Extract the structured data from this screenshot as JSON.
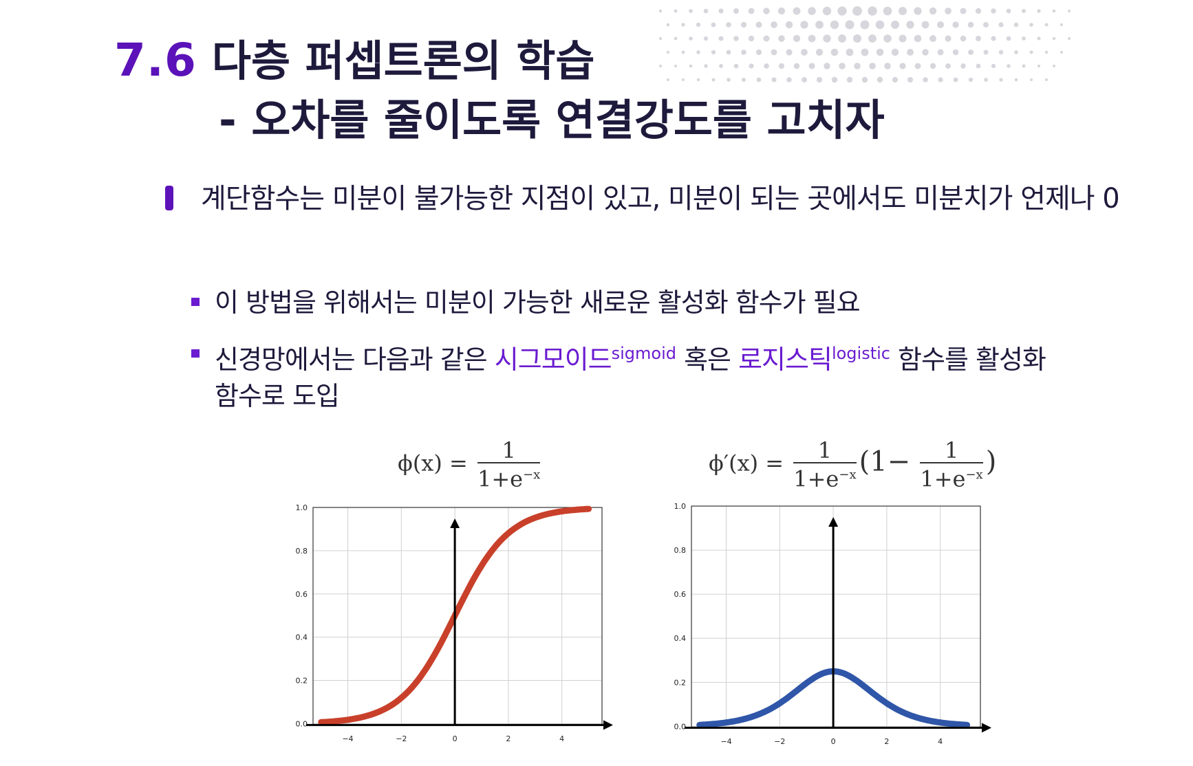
{
  "title": {
    "number": "7.6",
    "line1": "다층 퍼셉트론의 학습",
    "line2": "- 오차를 줄이도록 연결강도를 고치자"
  },
  "body": {
    "para1": "계단함수는 미분이 불가능한 지점이 있고, 미분이 되는 곳에서도 미분치가 언제나 0",
    "sub1": "이 방법을 위해서는 미분이 가능한 새로운 활성화 함수가 필요",
    "sub2": {
      "before": "신경망에서는 다음과 같은 ",
      "term1": "시그모이드",
      "term1_sup": "sigmoid",
      "middle": " 혹은 ",
      "term2": "로지스틱",
      "term2_sup": "logistic",
      "after_line1": " 함수를 활성화",
      "after_line2": "함수로 도입"
    }
  },
  "formulas": {
    "left_lhs": "ϕ(x) =",
    "left_num": "1",
    "left_den": "1+e",
    "left_exp": "−x",
    "right_lhs": "ϕ′(x) =",
    "right_num": "1",
    "right_den": "1+e",
    "right_exp": "−x",
    "right_paren_open": "(1−",
    "right_num2": "1",
    "right_den2": "1+e",
    "right_exp2": "−x",
    "right_paren_close": ")"
  },
  "chart_data": [
    {
      "type": "line",
      "function": "sigmoid",
      "x": [
        -5,
        -4,
        -3,
        -2,
        -1,
        0,
        1,
        2,
        3,
        4,
        5
      ],
      "y": [
        0.0067,
        0.018,
        0.047,
        0.119,
        0.269,
        0.5,
        0.731,
        0.881,
        0.953,
        0.982,
        0.9933
      ],
      "xticks": [
        "−4",
        "−2",
        "0",
        "2",
        "4"
      ],
      "yticks": [
        "0.0",
        "0.2",
        "0.4",
        "0.6",
        "0.8",
        "1.0"
      ],
      "xlim": [
        -5.3,
        5.5
      ],
      "ylim": [
        -0.005,
        1.0
      ],
      "grid": true,
      "color": "#c9402a"
    },
    {
      "type": "line",
      "function": "sigmoid derivative",
      "x": [
        -5,
        -4,
        -3,
        -2,
        -1,
        0,
        1,
        2,
        3,
        4,
        5
      ],
      "y": [
        0.0066,
        0.0177,
        0.0452,
        0.105,
        0.1966,
        0.25,
        0.1966,
        0.105,
        0.0452,
        0.0177,
        0.0066
      ],
      "xticks": [
        "−4",
        "−2",
        "0",
        "2",
        "4"
      ],
      "yticks": [
        "0.0",
        "0.2",
        "0.4",
        "0.6",
        "0.8",
        "1.0"
      ],
      "xlim": [
        -5.3,
        5.5
      ],
      "ylim": [
        -0.005,
        1.0
      ],
      "grid": true,
      "color": "#2f56a8"
    }
  ],
  "colors": {
    "accent": "#5b12b8",
    "text": "#1e1a3c"
  }
}
